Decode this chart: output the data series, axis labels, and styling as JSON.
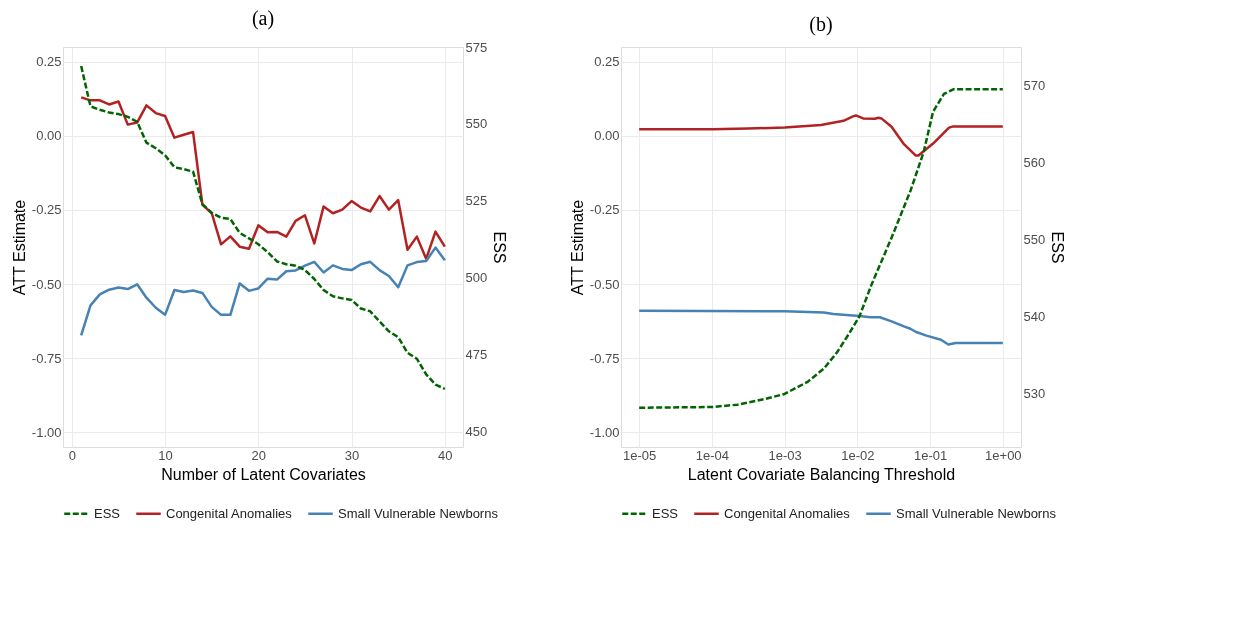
{
  "chart_data": [
    {
      "type": "line",
      "title": "(a)",
      "xlabel": "Number of Latent Covariates",
      "ylabel": "ATT Estimate",
      "y2label": "ESS",
      "grid": true,
      "legend": "bottom",
      "marker": "none",
      "x": [
        1,
        2,
        3,
        4,
        5,
        6,
        7,
        8,
        9,
        10,
        11,
        12,
        13,
        14,
        15,
        16,
        17,
        18,
        19,
        20,
        21,
        22,
        23,
        24,
        25,
        26,
        27,
        28,
        29,
        30,
        31,
        32,
        33,
        34,
        35,
        36,
        37,
        38,
        39,
        40
      ],
      "xlim": [
        -0.95,
        41.95
      ],
      "xticks": [
        0,
        10,
        20,
        30,
        40
      ],
      "ylim": [
        -1.05,
        0.3
      ],
      "yticks": [
        {
          "value": 0.25,
          "label": "0.25"
        },
        {
          "value": 0,
          "label": "0.00"
        },
        {
          "value": -0.25,
          "label": "-0.25"
        },
        {
          "value": -0.5,
          "label": "-0.50"
        },
        {
          "value": -0.75,
          "label": "-0.75"
        },
        {
          "value": -1,
          "label": "-1.00"
        }
      ],
      "y2lim": [
        445,
        575
      ],
      "y2ticks": [
        450,
        475,
        500,
        525,
        550,
        575
      ],
      "series": [
        {
          "name": "ESS",
          "color": "#006400",
          "axis": "y2",
          "line_style": "dashed",
          "values": [
            568.8,
            555.7,
            554.6,
            553.7,
            553.2,
            552.3,
            550.7,
            543.9,
            542.1,
            539.8,
            535.9,
            535.3,
            534.5,
            523.9,
            521.1,
            519.5,
            519.1,
            514.6,
            512.8,
            510.9,
            508.3,
            505.3,
            504.4,
            503.9,
            502.5,
            499.6,
            496.0,
            494.0,
            493.3,
            492.8,
            490.0,
            489.1,
            485.8,
            482.6,
            480.7,
            475.6,
            473.7,
            468.6,
            465.3,
            463.9
          ]
        },
        {
          "name": "Congenital Anomalies",
          "color": "#b22222",
          "line_style": "solid",
          "values": [
            0.13,
            0.12,
            0.12,
            0.106,
            0.116,
            0.038,
            0.045,
            0.103,
            0.077,
            0.067,
            -0.006,
            0.004,
            0.013,
            -0.232,
            -0.261,
            -0.366,
            -0.339,
            -0.374,
            -0.381,
            -0.302,
            -0.325,
            -0.324,
            -0.34,
            -0.287,
            -0.268,
            -0.363,
            -0.238,
            -0.261,
            -0.249,
            -0.22,
            -0.242,
            -0.255,
            -0.203,
            -0.249,
            -0.217,
            -0.384,
            -0.34,
            -0.415,
            -0.323,
            -0.374
          ]
        },
        {
          "name": "Small Vulnerable Newborns",
          "color": "#4682b4",
          "line_style": "solid",
          "values": [
            -0.673,
            -0.572,
            -0.535,
            -0.519,
            -0.512,
            -0.517,
            -0.501,
            -0.546,
            -0.58,
            -0.604,
            -0.52,
            -0.527,
            -0.522,
            -0.53,
            -0.577,
            -0.604,
            -0.604,
            -0.498,
            -0.523,
            -0.515,
            -0.482,
            -0.485,
            -0.457,
            -0.454,
            -0.438,
            -0.425,
            -0.461,
            -0.437,
            -0.449,
            -0.453,
            -0.433,
            -0.425,
            -0.453,
            -0.473,
            -0.511,
            -0.437,
            -0.426,
            -0.422,
            -0.377,
            -0.42
          ]
        }
      ]
    },
    {
      "type": "line",
      "title": "(b)",
      "xlabel": "Latent Covariate Balancing Threshold",
      "ylabel": "ATT Estimate",
      "y2label": "ESS",
      "grid": true,
      "legend": "bottom",
      "marker": "none",
      "log": "x",
      "xlim": [
        5.62e-06,
        1.778
      ],
      "xticks": [
        {
          "value": 1e-05,
          "label": "1e-05"
        },
        {
          "value": 0.0001,
          "label": "1e-04"
        },
        {
          "value": 0.001,
          "label": "1e-03"
        },
        {
          "value": 0.01,
          "label": "1e-02"
        },
        {
          "value": 0.1,
          "label": "1e-01"
        },
        {
          "value": 1,
          "label": "1e+00"
        }
      ],
      "ylim": [
        -1.05,
        0.3
      ],
      "yticks": [
        {
          "value": 0.25,
          "label": "0.25"
        },
        {
          "value": 0,
          "label": "0.00"
        },
        {
          "value": -0.25,
          "label": "-0.25"
        },
        {
          "value": -0.5,
          "label": "-0.50"
        },
        {
          "value": -0.75,
          "label": "-0.75"
        },
        {
          "value": -1,
          "label": "-1.00"
        }
      ],
      "y2lim": [
        523,
        575
      ],
      "y2ticks": [
        530,
        540,
        550,
        560,
        570
      ],
      "series": [
        {
          "name": "ESS",
          "color": "#006400",
          "axis": "y2",
          "line_style": "dashed",
          "x": [
            1e-05,
            0.0001,
            0.000224,
            0.000513,
            0.001,
            0.00209,
            0.00347,
            0.00525,
            0.00776,
            0.0107,
            0.0158,
            0.0295,
            0.0537,
            0.0813,
            0.11,
            0.155,
            0.209,
            1
          ],
          "values": [
            528.1,
            528.2,
            528.5,
            529.2,
            529.9,
            531.5,
            533.2,
            535.3,
            537.8,
            540.0,
            544.2,
            550.2,
            556.3,
            561.3,
            566.6,
            568.9,
            569.5,
            569.5
          ]
        },
        {
          "name": "Congenital Anomalies",
          "color": "#b22222",
          "line_style": "solid",
          "x": [
            1e-05,
            0.0001,
            0.000316,
            0.001,
            0.00316,
            0.00646,
            0.0087,
            0.00955,
            0.012,
            0.0174,
            0.0195,
            0.0214,
            0.0295,
            0.0437,
            0.0631,
            0.0692,
            0.11,
            0.182,
            0.209,
            1
          ],
          "values": [
            0.022,
            0.022,
            0.025,
            0.028,
            0.037,
            0.051,
            0.066,
            0.069,
            0.059,
            0.058,
            0.061,
            0.059,
            0.031,
            -0.028,
            -0.066,
            -0.066,
            -0.026,
            0.028,
            0.032,
            0.032
          ]
        },
        {
          "name": "Small Vulnerable Newborns",
          "color": "#4682b4",
          "line_style": "solid",
          "x": [
            1e-05,
            0.001,
            0.00347,
            0.00468,
            0.0107,
            0.0151,
            0.0204,
            0.0295,
            0.0437,
            0.0537,
            0.0631,
            0.0891,
            0.141,
            0.178,
            0.224,
            1
          ],
          "values": [
            -0.59,
            -0.592,
            -0.596,
            -0.601,
            -0.608,
            -0.612,
            -0.612,
            -0.626,
            -0.643,
            -0.651,
            -0.661,
            -0.674,
            -0.688,
            -0.704,
            -0.699,
            -0.699
          ]
        }
      ]
    }
  ]
}
